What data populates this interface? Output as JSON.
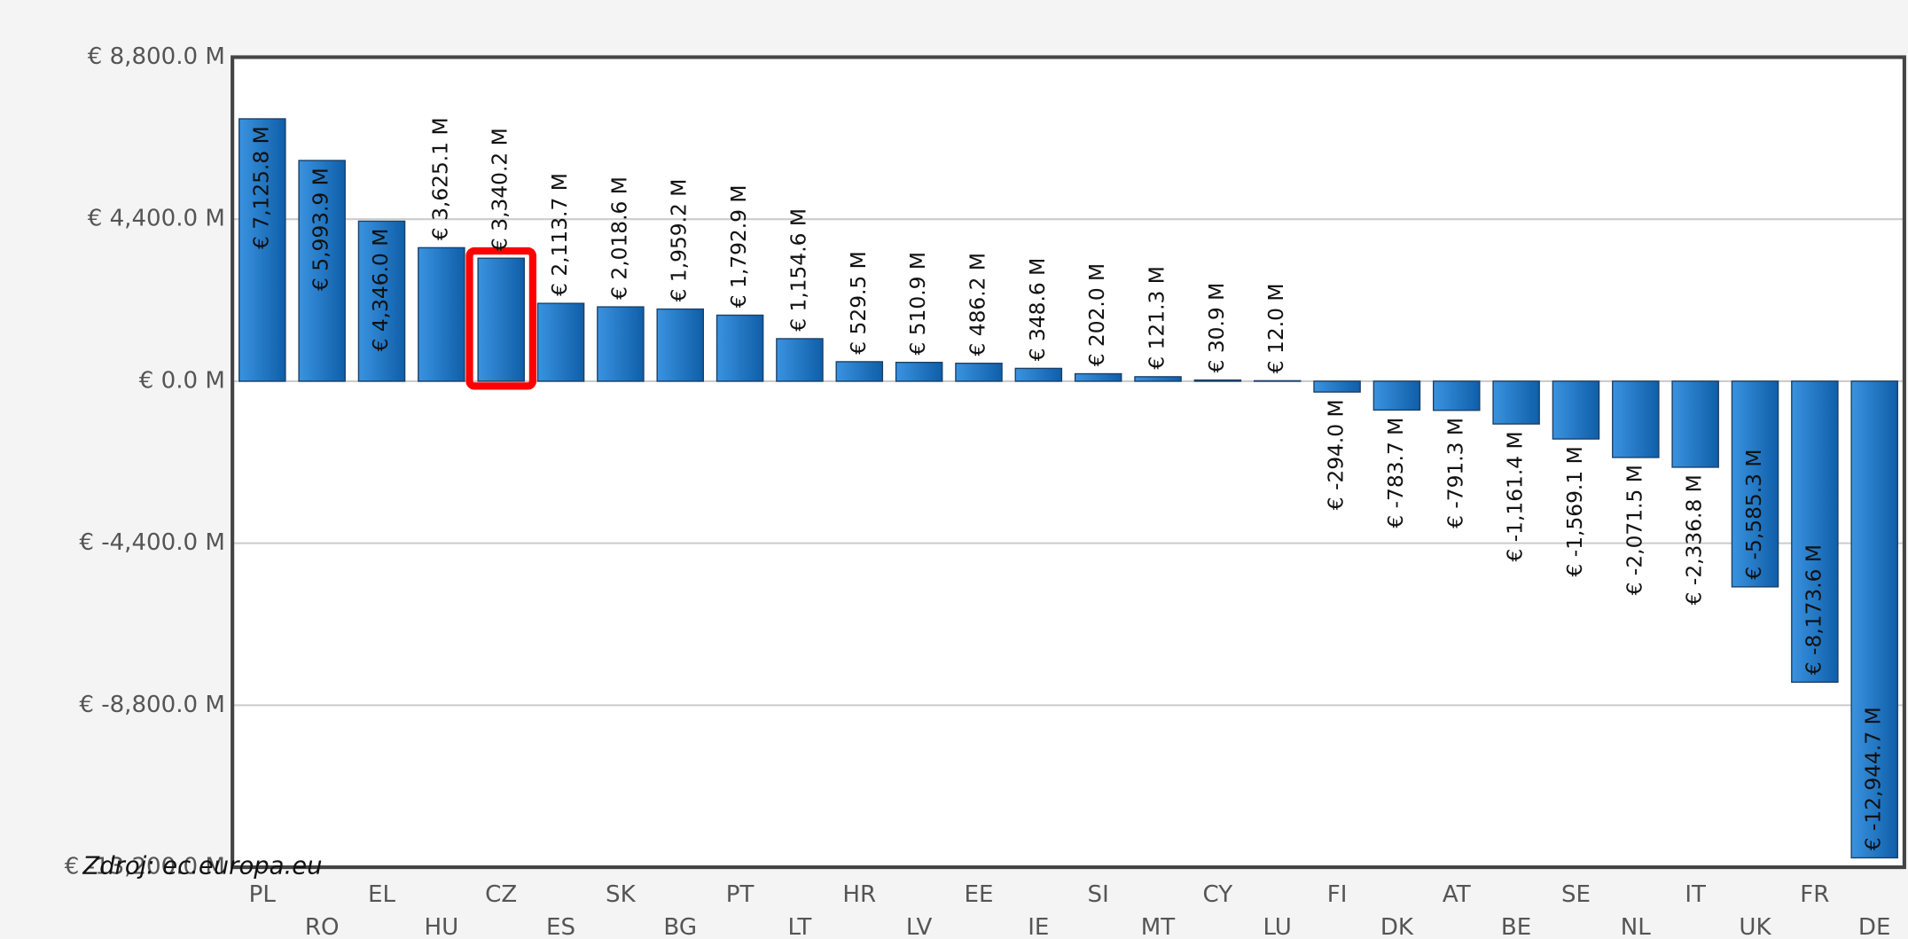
{
  "chart_data": {
    "type": "bar",
    "categories": [
      "PL",
      "RO",
      "EL",
      "HU",
      "CZ",
      "ES",
      "SK",
      "BG",
      "PT",
      "LT",
      "HR",
      "LV",
      "EE",
      "IE",
      "SI",
      "MT",
      "CY",
      "LU",
      "FI",
      "DK",
      "AT",
      "BE",
      "SE",
      "NL",
      "IT",
      "UK",
      "FR",
      "DE"
    ],
    "values": [
      7125.8,
      5993.9,
      4346.0,
      3625.1,
      3340.2,
      2113.7,
      2018.6,
      1959.2,
      1792.9,
      1154.6,
      529.5,
      510.9,
      486.2,
      348.6,
      202.0,
      121.3,
      30.9,
      12.0,
      -294.0,
      -783.7,
      -791.3,
      -1161.4,
      -1569.1,
      -2071.5,
      -2336.8,
      -5585.3,
      -8173.6,
      -12944.7
    ],
    "value_labels": [
      "€ 7,125.8 M",
      "€ 5,993.9 M",
      "€ 4,346.0 M",
      "€ 3,625.1 M",
      "€ 3,340.2 M",
      "€ 2,113.7 M",
      "€ 2,018.6 M",
      "€ 1,959.2 M",
      "€ 1,792.9 M",
      "€ 1,154.6 M",
      "€ 529.5 M",
      "€ 510.9 M",
      "€ 486.2 M",
      "€ 348.6 M",
      "€ 202.0 M",
      "€ 121.3 M",
      "€ 30.9 M",
      "€ 12.0 M",
      "€ -294.0 M",
      "€ -783.7 M",
      "€ -791.3 M",
      "€ -1,161.4 M",
      "€ -1,569.1 M",
      "€ -2,071.5 M",
      "€ -2,336.8 M",
      "€ -5,585.3 M",
      "€ -8,173.6 M",
      "€ -12,944.7 M"
    ],
    "color": "#1a78c8",
    "highlight": "CZ",
    "highlight_color": "#ff0000",
    "ylim": [
      -13200,
      8800
    ],
    "yticks": [
      {
        "value": 8800,
        "label": "€ 8,800.0 M"
      },
      {
        "value": 4400,
        "label": "€ 4,400.0 M"
      },
      {
        "value": 0,
        "label": "€ 0.0 M"
      },
      {
        "value": -4400,
        "label": "€ -4,400.0 M"
      },
      {
        "value": -8800,
        "label": "€ -8,800.0 M"
      },
      {
        "value": -13200,
        "label": "€ -13,200.0 M"
      }
    ],
    "grid": true,
    "source": "Zdroj: ec.europa.eu"
  }
}
